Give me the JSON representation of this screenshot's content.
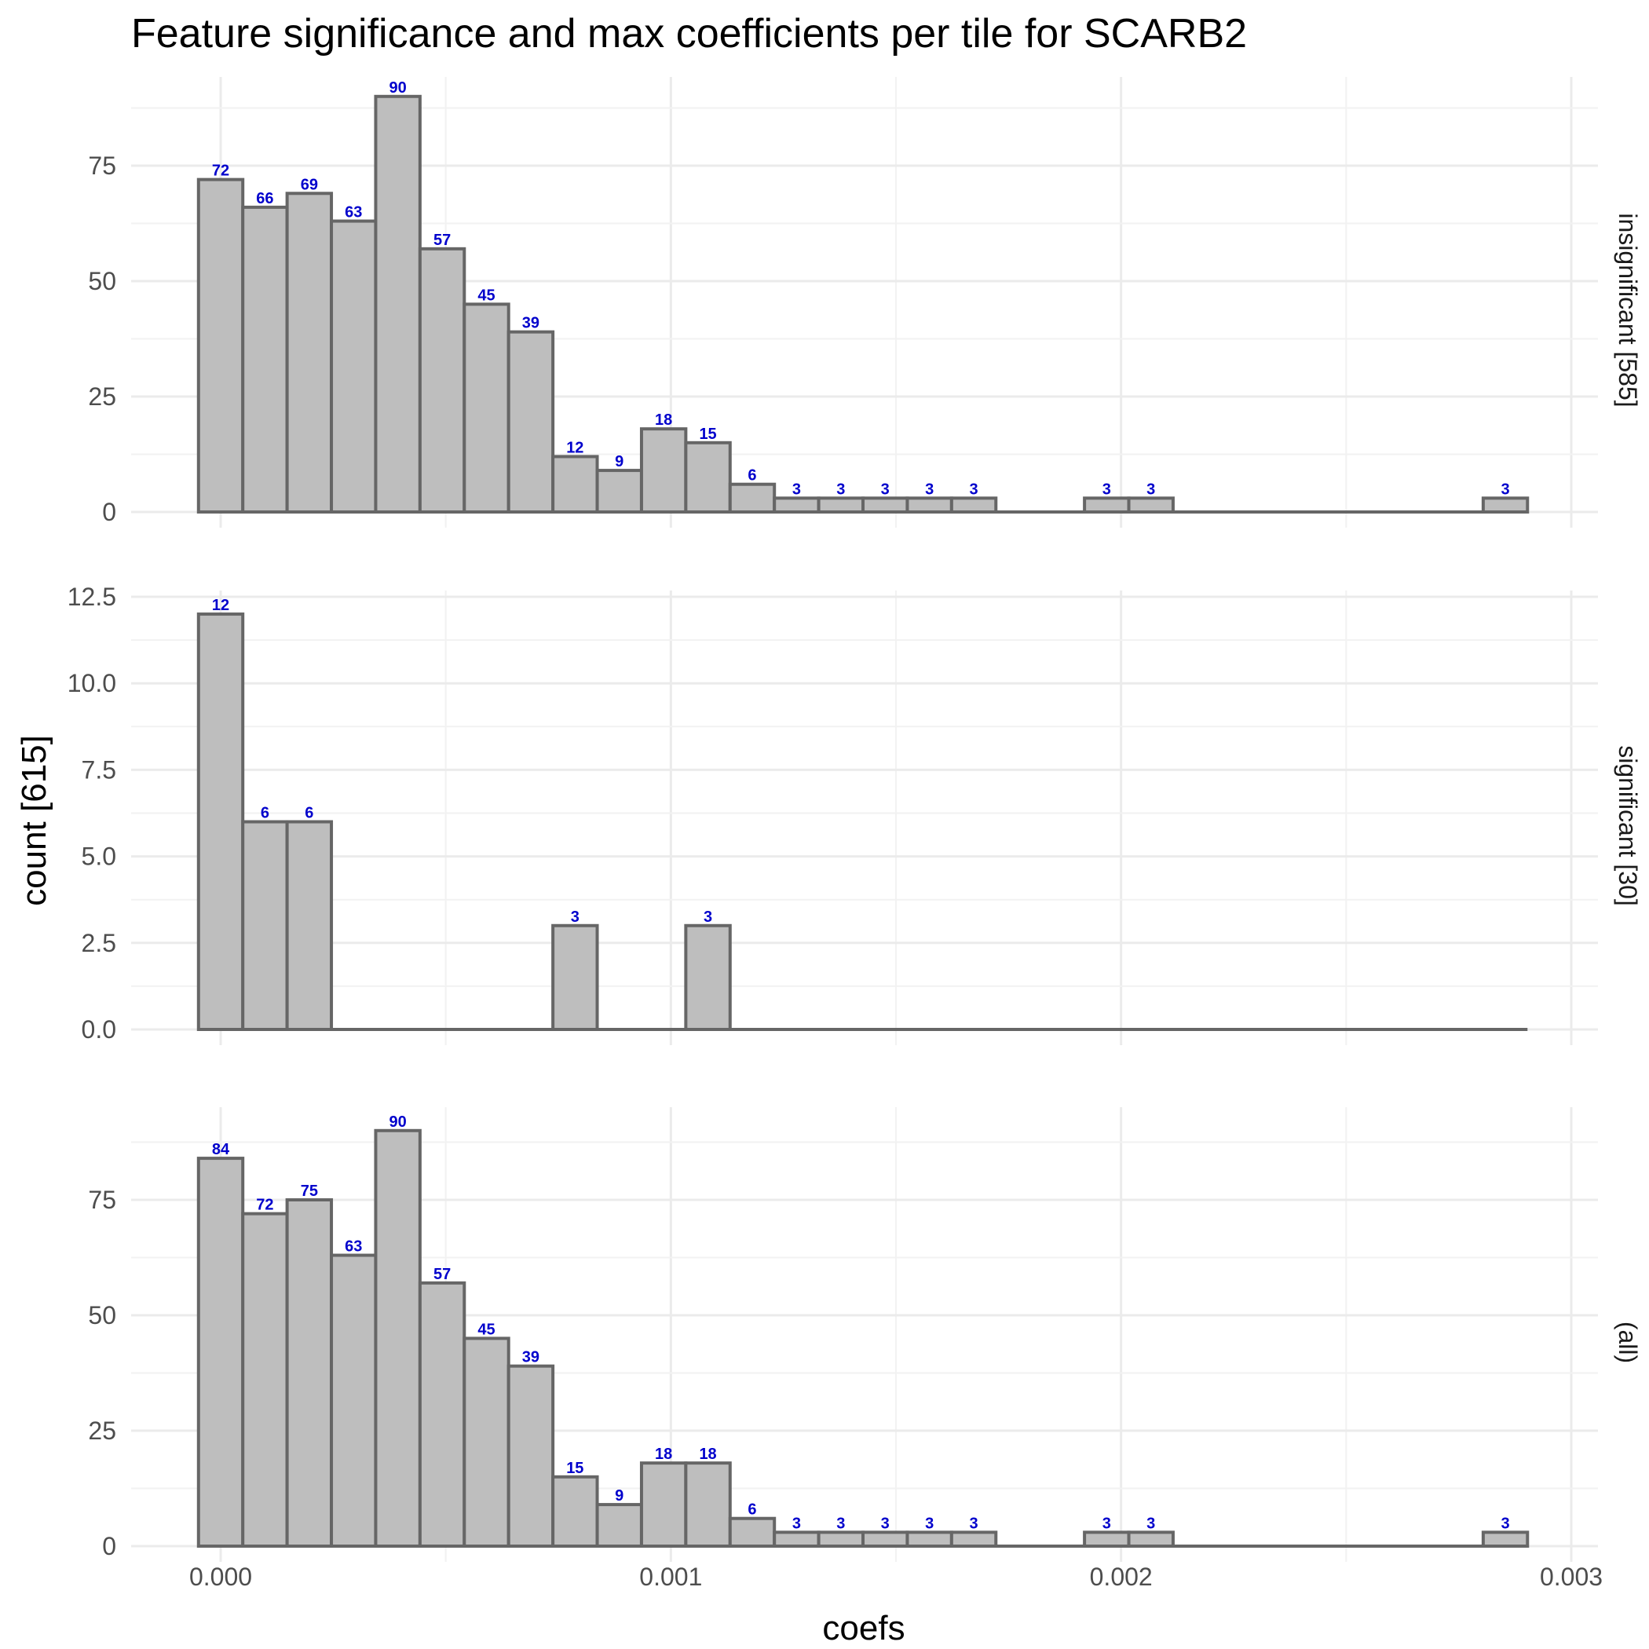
{
  "chart_data": {
    "type": "bar",
    "title": "Feature significance and max coefficients per tile for SCARB2",
    "xlabel": "coefs",
    "ylabel": "count [615]",
    "xlim": [
      -0.0002,
      0.003
    ],
    "xticks": [
      0.0,
      0.001,
      0.002,
      0.003
    ],
    "xtick_labels": [
      "0.000",
      "0.001",
      "0.002",
      "0.003"
    ],
    "bin_width": 9.84e-05,
    "bin_centers": [
      0.0,
      9.84e-05,
      0.0001968,
      0.0002952,
      0.0003936,
      0.000492,
      0.0005904,
      0.0006888,
      0.0007872,
      0.0008856,
      0.000984,
      0.0010824,
      0.0011808,
      0.0012792,
      0.0013776,
      0.001476,
      0.0015744,
      0.0016728,
      0.0017712,
      0.0018696,
      0.001968,
      0.0020664,
      0.0021648,
      0.0022632,
      0.0023616,
      0.00246,
      0.0025584,
      0.0026568,
      0.0027552,
      0.0028536
    ],
    "grid": true,
    "legend": "none",
    "bar_fill": "#bebebe",
    "bar_outline": "#666666",
    "label_color": "#0000cc",
    "panels": [
      {
        "label": "insignificant [585]",
        "ylim": [
          0,
          93
        ],
        "yticks": [
          0,
          25,
          50,
          75
        ],
        "ytick_labels": [
          "0",
          "25",
          "50",
          "75"
        ],
        "values": [
          72,
          66,
          69,
          63,
          90,
          57,
          45,
          39,
          12,
          9,
          18,
          15,
          6,
          3,
          3,
          3,
          3,
          3,
          0,
          0,
          3,
          3,
          0,
          0,
          0,
          0,
          0,
          0,
          0,
          3
        ]
      },
      {
        "label": "significant [30]",
        "ylim": [
          0,
          12.5
        ],
        "yticks": [
          0,
          2.5,
          5,
          7.5,
          10,
          12.5
        ],
        "ytick_labels": [
          "0.0",
          "2.5",
          "5.0",
          "7.5",
          "10.0",
          "12.5"
        ],
        "values": [
          12,
          6,
          6,
          0,
          0,
          0,
          0,
          0,
          3,
          0,
          0,
          3,
          0,
          0,
          0,
          0,
          0,
          0,
          0,
          0,
          0,
          0,
          0,
          0,
          0,
          0,
          0,
          0,
          0,
          0
        ]
      },
      {
        "label": "(all)",
        "ylim": [
          0,
          93
        ],
        "yticks": [
          0,
          25,
          50,
          75
        ],
        "ytick_labels": [
          "0",
          "25",
          "50",
          "75"
        ],
        "values": [
          84,
          72,
          75,
          63,
          90,
          57,
          45,
          39,
          15,
          9,
          18,
          18,
          6,
          3,
          3,
          3,
          3,
          3,
          0,
          0,
          3,
          3,
          0,
          0,
          0,
          0,
          0,
          0,
          0,
          3
        ]
      }
    ]
  }
}
